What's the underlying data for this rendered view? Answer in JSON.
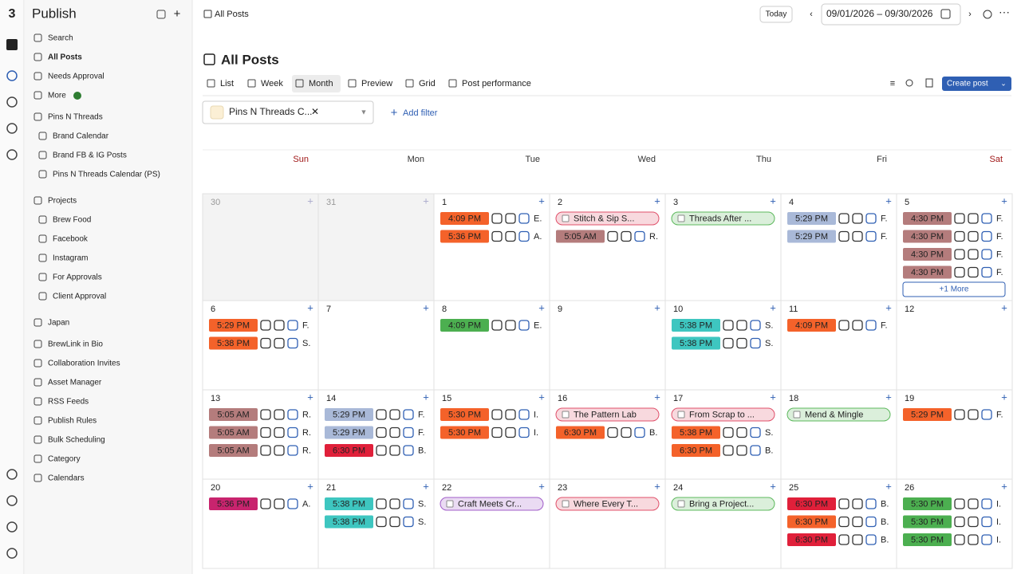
{
  "sidebar": {
    "title": "Publish",
    "items": [
      "Search",
      "All Posts",
      "Needs Approval",
      "More",
      "Pins N Threads",
      "Brand Calendar",
      "Brand FB & IG Posts",
      "Pins N Threads Calendar (PS)",
      "Projects",
      "Brew Food",
      "Facebook",
      "Instagram",
      "For Approvals",
      "Client Approval",
      "Japan",
      "BrewLink in Bio",
      "Collaboration Invites",
      "Asset Manager",
      "RSS Feeds",
      "Publish Rules",
      "Bulk Scheduling",
      "Category",
      "Calendars"
    ]
  },
  "topbar": {
    "breadcrumb": "All Posts",
    "today": "Today",
    "date_range": "09/01/2026 – 09/30/2026"
  },
  "page": {
    "title": "All Posts",
    "tabs": [
      "List",
      "Week",
      "Month",
      "Preview",
      "Grid",
      "Post performance"
    ],
    "create_post": "Create post",
    "filter_chip": "Pins N Threads C...",
    "add_filter": "Add filter"
  },
  "calendar": {
    "weekdays": [
      "Sun",
      "Mon",
      "Tue",
      "Wed",
      "Thu",
      "Fri",
      "Sat"
    ],
    "weeks": [
      [
        {
          "day": 30,
          "muted": true,
          "posts": []
        },
        {
          "day": 31,
          "muted": true,
          "posts": []
        },
        {
          "day": 1,
          "posts": [
            {
              "time": "4:09 PM",
              "color": "#f4622a",
              "text": "E."
            },
            {
              "time": "5:36 PM",
              "color": "#f4622a",
              "text": "A."
            }
          ]
        },
        {
          "day": 2,
          "posts": [
            {
              "title": "Stitch & Sip S...",
              "color": "#e0506a"
            },
            {
              "time": "5:05 AM",
              "color": "#b47c7c",
              "text": "R."
            }
          ]
        },
        {
          "day": 3,
          "posts": [
            {
              "title": "Threads After ...",
              "color": "#5cb85c"
            }
          ]
        },
        {
          "day": 4,
          "posts": [
            {
              "time": "5:29 PM",
              "color": "#a9b9d8",
              "text": "F."
            },
            {
              "time": "5:29 PM",
              "color": "#a9b9d8",
              "text": "F."
            }
          ]
        },
        {
          "day": 5,
          "posts": [
            {
              "time": "4:30 PM",
              "color": "#b47c7c",
              "text": "F."
            },
            {
              "time": "4:30 PM",
              "color": "#b47c7c",
              "text": "F."
            },
            {
              "time": "4:30 PM",
              "color": "#b47c7c",
              "text": "F."
            },
            {
              "time": "4:30 PM",
              "color": "#b47c7c",
              "text": "F."
            }
          ],
          "more": "+1 More"
        }
      ],
      [
        {
          "day": 6,
          "posts": [
            {
              "time": "5:29 PM",
              "color": "#f4622a",
              "text": "F."
            },
            {
              "time": "5:38 PM",
              "color": "#f4622a",
              "text": "S."
            }
          ]
        },
        {
          "day": 7,
          "posts": []
        },
        {
          "day": 8,
          "posts": [
            {
              "time": "4:09 PM",
              "color": "#4caf50",
              "text": "E."
            }
          ]
        },
        {
          "day": 9,
          "posts": []
        },
        {
          "day": 10,
          "posts": [
            {
              "time": "5:38 PM",
              "color": "#3ec6c0",
              "text": "S."
            },
            {
              "time": "5:38 PM",
              "color": "#3ec6c0",
              "text": "S."
            }
          ]
        },
        {
          "day": 11,
          "posts": [
            {
              "time": "4:09 PM",
              "color": "#f4622a",
              "text": "F."
            }
          ]
        },
        {
          "day": 12,
          "posts": []
        }
      ],
      [
        {
          "day": 13,
          "posts": [
            {
              "time": "5:05 AM",
              "color": "#b47c7c",
              "text": "R."
            },
            {
              "time": "5:05 AM",
              "color": "#b47c7c",
              "text": "R."
            },
            {
              "time": "5:05 AM",
              "color": "#b47c7c",
              "text": "R."
            }
          ]
        },
        {
          "day": 14,
          "posts": [
            {
              "time": "5:29 PM",
              "color": "#a9b9d8",
              "text": "F."
            },
            {
              "time": "5:29 PM",
              "color": "#a9b9d8",
              "text": "F."
            },
            {
              "time": "6:30 PM",
              "color": "#e0203a",
              "text": "B."
            }
          ]
        },
        {
          "day": 15,
          "posts": [
            {
              "time": "5:30 PM",
              "color": "#f4622a",
              "text": "I."
            },
            {
              "time": "5:30 PM",
              "color": "#f4622a",
              "text": "I."
            }
          ]
        },
        {
          "day": 16,
          "posts": [
            {
              "title": "The Pattern Lab",
              "color": "#e0506a"
            },
            {
              "time": "6:30 PM",
              "color": "#f4622a",
              "text": "B."
            }
          ]
        },
        {
          "day": 17,
          "posts": [
            {
              "title": "From Scrap to ...",
              "color": "#e0506a"
            },
            {
              "time": "5:38 PM",
              "color": "#f4622a",
              "text": "S."
            },
            {
              "time": "6:30 PM",
              "color": "#f4622a",
              "text": "B."
            }
          ]
        },
        {
          "day": 18,
          "posts": [
            {
              "title": "Mend & Mingle",
              "color": "#5cb85c"
            }
          ]
        },
        {
          "day": 19,
          "posts": [
            {
              "time": "5:29 PM",
              "color": "#f4622a",
              "text": "F."
            }
          ]
        }
      ],
      [
        {
          "day": 20,
          "posts": [
            {
              "time": "5:36 PM",
              "color": "#c8246e",
              "text": "A."
            }
          ]
        },
        {
          "day": 21,
          "posts": [
            {
              "time": "5:38 PM",
              "color": "#3ec6c0",
              "text": "S."
            },
            {
              "time": "5:38 PM",
              "color": "#3ec6c0",
              "text": "S."
            }
          ]
        },
        {
          "day": 22,
          "posts": [
            {
              "title": "Craft Meets Cr...",
              "color": "#a05cc8"
            }
          ]
        },
        {
          "day": 23,
          "posts": [
            {
              "title": "Where Every T...",
              "color": "#e0506a"
            }
          ]
        },
        {
          "day": 24,
          "posts": [
            {
              "title": "Bring a Project...",
              "color": "#5cb85c"
            }
          ]
        },
        {
          "day": 25,
          "posts": [
            {
              "time": "6:30 PM",
              "color": "#e0203a",
              "text": "B."
            },
            {
              "time": "6:30 PM",
              "color": "#f4622a",
              "text": "B."
            },
            {
              "time": "6:30 PM",
              "color": "#e0203a",
              "text": "B."
            }
          ]
        },
        {
          "day": 26,
          "posts": [
            {
              "time": "5:30 PM",
              "color": "#4caf50",
              "text": "I."
            },
            {
              "time": "5:30 PM",
              "color": "#4caf50",
              "text": "I."
            },
            {
              "time": "5:30 PM",
              "color": "#4caf50",
              "text": "I."
            }
          ]
        }
      ]
    ]
  }
}
